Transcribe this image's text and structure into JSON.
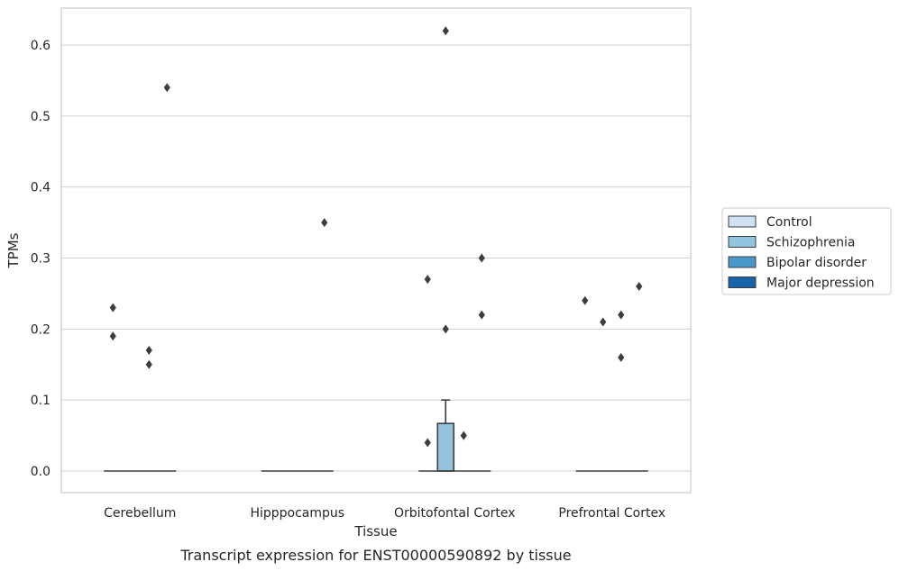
{
  "caption": "Transcript expression for ENST00000590892 by tissue",
  "chart_data": {
    "type": "box",
    "title": "",
    "xlabel": "Tissue",
    "ylabel": "TPMs",
    "ylim": [
      -0.03,
      0.65
    ],
    "yticks": [
      "0.0",
      "0.1",
      "0.2",
      "0.3",
      "0.4",
      "0.5",
      "0.6"
    ],
    "grid": "y",
    "legend_position": "right",
    "categories": [
      "Cerebellum",
      "Hipppocampus",
      "Orbitofontal Cortex",
      "Prefrontal Cortex"
    ],
    "series": [
      {
        "name": "Control",
        "color": "#cfe1f2",
        "boxes": [
          {
            "q1": 0,
            "median": 0,
            "q3": 0,
            "whisker_low": 0,
            "whisker_high": 0,
            "outliers": [
              0.23,
              0.19
            ]
          },
          {
            "q1": 0,
            "median": 0,
            "q3": 0,
            "whisker_low": 0,
            "whisker_high": 0,
            "outliers": []
          },
          {
            "q1": 0,
            "median": 0,
            "q3": 0,
            "whisker_low": 0,
            "whisker_high": 0,
            "outliers": [
              0.27,
              0.04
            ]
          },
          {
            "q1": 0,
            "median": 0,
            "q3": 0,
            "whisker_low": 0,
            "whisker_high": 0,
            "outliers": [
              0.24
            ]
          }
        ]
      },
      {
        "name": "Schizophrenia",
        "color": "#93c4de",
        "boxes": [
          {
            "q1": 0,
            "median": 0,
            "q3": 0,
            "whisker_low": 0,
            "whisker_high": 0,
            "outliers": []
          },
          {
            "q1": 0,
            "median": 0,
            "q3": 0,
            "whisker_low": 0,
            "whisker_high": 0,
            "outliers": []
          },
          {
            "q1": 0,
            "median": 0,
            "q3": 0.067,
            "whisker_low": 0,
            "whisker_high": 0.1,
            "outliers": [
              0.62,
              0.2
            ]
          },
          {
            "q1": 0,
            "median": 0,
            "q3": 0,
            "whisker_low": 0,
            "whisker_high": 0,
            "outliers": [
              0.21
            ]
          }
        ]
      },
      {
        "name": "Bipolar disorder",
        "color": "#4a98c9",
        "boxes": [
          {
            "q1": 0,
            "median": 0,
            "q3": 0,
            "whisker_low": 0,
            "whisker_high": 0,
            "outliers": [
              0.17,
              0.15
            ]
          },
          {
            "q1": 0,
            "median": 0,
            "q3": 0,
            "whisker_low": 0,
            "whisker_high": 0,
            "outliers": []
          },
          {
            "q1": 0,
            "median": 0,
            "q3": 0,
            "whisker_low": 0,
            "whisker_high": 0,
            "outliers": [
              0.05
            ]
          },
          {
            "q1": 0,
            "median": 0,
            "q3": 0,
            "whisker_low": 0,
            "whisker_high": 0,
            "outliers": [
              0.22,
              0.16
            ]
          }
        ]
      },
      {
        "name": "Major depression",
        "color": "#1764ab",
        "boxes": [
          {
            "q1": 0,
            "median": 0,
            "q3": 0,
            "whisker_low": 0,
            "whisker_high": 0,
            "outliers": [
              0.54
            ]
          },
          {
            "q1": 0,
            "median": 0,
            "q3": 0,
            "whisker_low": 0,
            "whisker_high": 0,
            "outliers": [
              0.35
            ]
          },
          {
            "q1": 0,
            "median": 0,
            "q3": 0,
            "whisker_low": 0,
            "whisker_high": 0,
            "outliers": [
              0.3,
              0.22
            ]
          },
          {
            "q1": 0,
            "median": 0,
            "q3": 0,
            "whisker_low": 0,
            "whisker_high": 0,
            "outliers": [
              0.26
            ]
          }
        ]
      }
    ]
  }
}
